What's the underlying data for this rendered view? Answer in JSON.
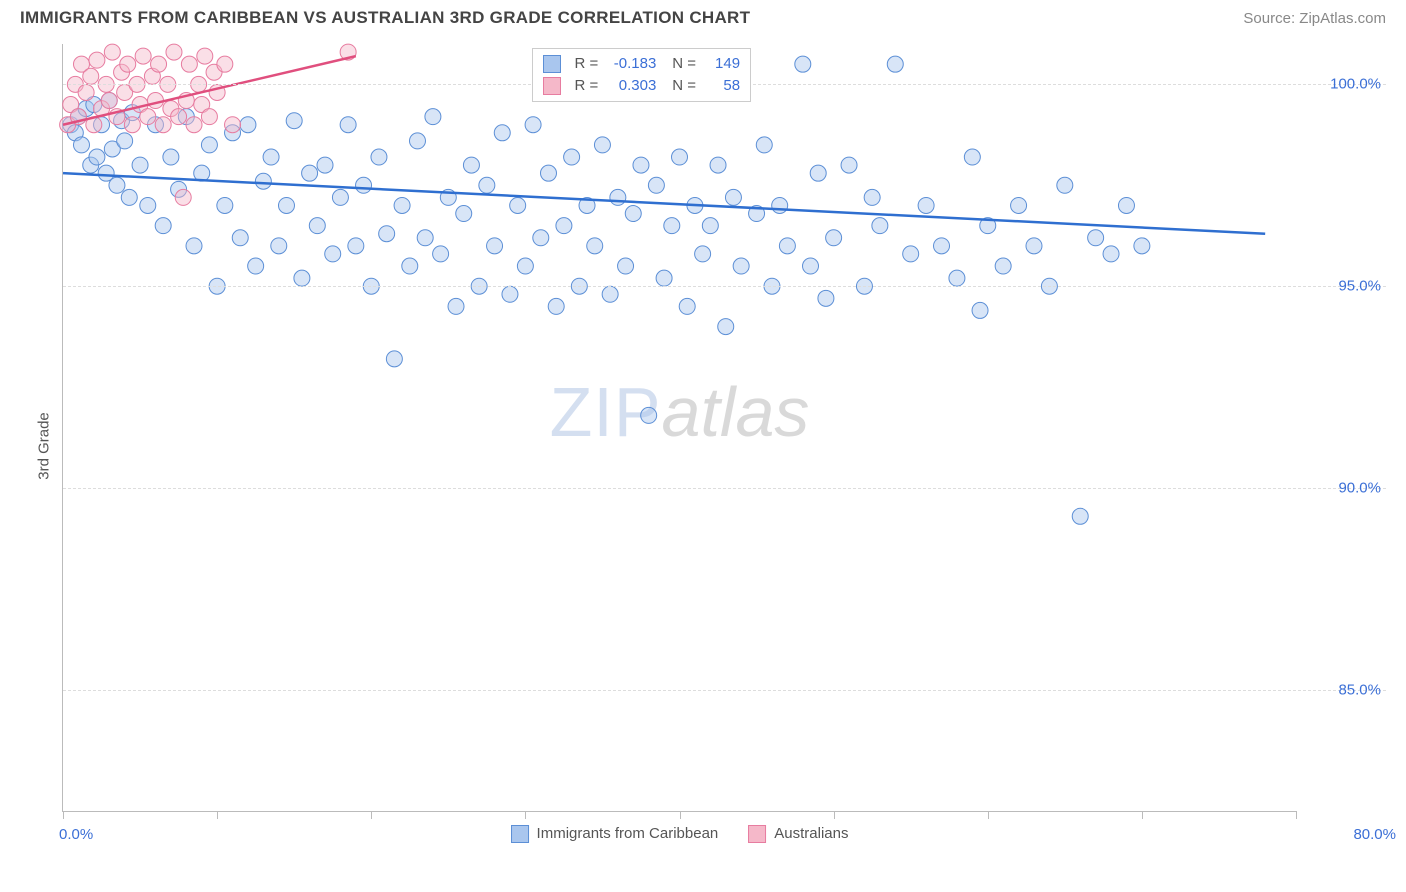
{
  "title": "IMMIGRANTS FROM CARIBBEAN VS AUSTRALIAN 3RD GRADE CORRELATION CHART",
  "source_prefix": "Source: ",
  "source_name": "ZipAtlas.com",
  "ylabel": "3rd Grade",
  "watermark_zip": "ZIP",
  "watermark_atlas": "atlas",
  "chart": {
    "type": "scatter",
    "x_min": 0.0,
    "x_max": 80.0,
    "y_min": 82.0,
    "y_max": 101.0,
    "x_start_label": "0.0%",
    "x_end_label": "80.0%",
    "x_tick_step": 10.0,
    "y_ticks": [
      85.0,
      90.0,
      95.0,
      100.0
    ],
    "y_tick_labels": [
      "85.0%",
      "90.0%",
      "95.0%",
      "100.0%"
    ],
    "background_color": "#ffffff",
    "grid_color": "#dddddd",
    "axis_color": "#bbbbbb",
    "tick_label_color": "#3b6fd6",
    "marker_radius": 8,
    "marker_opacity": 0.45,
    "series": [
      {
        "name": "Immigrants from Caribbean",
        "color_fill": "#a9c6ee",
        "color_stroke": "#5c8fd6",
        "line_color": "#2f6fd0",
        "R": "-0.183",
        "N": "149",
        "trend": {
          "x1": 0.0,
          "y1": 97.8,
          "x2": 78.0,
          "y2": 96.3
        },
        "points": [
          [
            0.5,
            99.0
          ],
          [
            0.8,
            98.8
          ],
          [
            1.0,
            99.2
          ],
          [
            1.2,
            98.5
          ],
          [
            1.5,
            99.4
          ],
          [
            1.8,
            98.0
          ],
          [
            2.0,
            99.5
          ],
          [
            2.2,
            98.2
          ],
          [
            2.5,
            99.0
          ],
          [
            2.8,
            97.8
          ],
          [
            3.0,
            99.6
          ],
          [
            3.2,
            98.4
          ],
          [
            3.5,
            97.5
          ],
          [
            3.8,
            99.1
          ],
          [
            4.0,
            98.6
          ],
          [
            4.3,
            97.2
          ],
          [
            4.5,
            99.3
          ],
          [
            5.0,
            98.0
          ],
          [
            5.5,
            97.0
          ],
          [
            6.0,
            99.0
          ],
          [
            6.5,
            96.5
          ],
          [
            7.0,
            98.2
          ],
          [
            7.5,
            97.4
          ],
          [
            8.0,
            99.2
          ],
          [
            8.5,
            96.0
          ],
          [
            9.0,
            97.8
          ],
          [
            9.5,
            98.5
          ],
          [
            10.0,
            95.0
          ],
          [
            10.5,
            97.0
          ],
          [
            11.0,
            98.8
          ],
          [
            11.5,
            96.2
          ],
          [
            12.0,
            99.0
          ],
          [
            12.5,
            95.5
          ],
          [
            13.0,
            97.6
          ],
          [
            13.5,
            98.2
          ],
          [
            14.0,
            96.0
          ],
          [
            14.5,
            97.0
          ],
          [
            15.0,
            99.1
          ],
          [
            15.5,
            95.2
          ],
          [
            16.0,
            97.8
          ],
          [
            16.5,
            96.5
          ],
          [
            17.0,
            98.0
          ],
          [
            17.5,
            95.8
          ],
          [
            18.0,
            97.2
          ],
          [
            18.5,
            99.0
          ],
          [
            19.0,
            96.0
          ],
          [
            19.5,
            97.5
          ],
          [
            20.0,
            95.0
          ],
          [
            20.5,
            98.2
          ],
          [
            21.0,
            96.3
          ],
          [
            21.5,
            93.2
          ],
          [
            22.0,
            97.0
          ],
          [
            22.5,
            95.5
          ],
          [
            23.0,
            98.6
          ],
          [
            23.5,
            96.2
          ],
          [
            24.0,
            99.2
          ],
          [
            24.5,
            95.8
          ],
          [
            25.0,
            97.2
          ],
          [
            25.5,
            94.5
          ],
          [
            26.0,
            96.8
          ],
          [
            26.5,
            98.0
          ],
          [
            27.0,
            95.0
          ],
          [
            27.5,
            97.5
          ],
          [
            28.0,
            96.0
          ],
          [
            28.5,
            98.8
          ],
          [
            29.0,
            94.8
          ],
          [
            29.5,
            97.0
          ],
          [
            30.0,
            95.5
          ],
          [
            30.5,
            99.0
          ],
          [
            31.0,
            96.2
          ],
          [
            31.5,
            97.8
          ],
          [
            32.0,
            94.5
          ],
          [
            32.5,
            96.5
          ],
          [
            33.0,
            98.2
          ],
          [
            33.5,
            95.0
          ],
          [
            34.0,
            97.0
          ],
          [
            34.5,
            96.0
          ],
          [
            35.0,
            98.5
          ],
          [
            35.5,
            94.8
          ],
          [
            36.0,
            97.2
          ],
          [
            36.5,
            95.5
          ],
          [
            37.0,
            96.8
          ],
          [
            37.5,
            98.0
          ],
          [
            38.0,
            91.8
          ],
          [
            38.5,
            97.5
          ],
          [
            39.0,
            95.2
          ],
          [
            39.5,
            96.5
          ],
          [
            40.0,
            98.2
          ],
          [
            40.5,
            94.5
          ],
          [
            41.0,
            97.0
          ],
          [
            41.5,
            95.8
          ],
          [
            42.0,
            96.5
          ],
          [
            42.5,
            98.0
          ],
          [
            43.0,
            94.0
          ],
          [
            43.5,
            97.2
          ],
          [
            44.0,
            95.5
          ],
          [
            45.0,
            96.8
          ],
          [
            45.5,
            98.5
          ],
          [
            46.0,
            95.0
          ],
          [
            46.5,
            97.0
          ],
          [
            47.0,
            96.0
          ],
          [
            48.0,
            100.5
          ],
          [
            48.5,
            95.5
          ],
          [
            49.0,
            97.8
          ],
          [
            49.5,
            94.7
          ],
          [
            50.0,
            96.2
          ],
          [
            51.0,
            98.0
          ],
          [
            52.0,
            95.0
          ],
          [
            52.5,
            97.2
          ],
          [
            53.0,
            96.5
          ],
          [
            54.0,
            100.5
          ],
          [
            55.0,
            95.8
          ],
          [
            56.0,
            97.0
          ],
          [
            57.0,
            96.0
          ],
          [
            58.0,
            95.2
          ],
          [
            59.0,
            98.2
          ],
          [
            59.5,
            94.4
          ],
          [
            60.0,
            96.5
          ],
          [
            61.0,
            95.5
          ],
          [
            62.0,
            97.0
          ],
          [
            63.0,
            96.0
          ],
          [
            64.0,
            95.0
          ],
          [
            65.0,
            97.5
          ],
          [
            66.0,
            89.3
          ],
          [
            67.0,
            96.2
          ],
          [
            68.0,
            95.8
          ],
          [
            69.0,
            97.0
          ],
          [
            70.0,
            96.0
          ]
        ]
      },
      {
        "name": "Australians",
        "color_fill": "#f5b8c9",
        "color_stroke": "#e77ca0",
        "line_color": "#e04f7e",
        "R": "0.303",
        "N": "58",
        "trend": {
          "x1": 0.0,
          "y1": 99.0,
          "x2": 19.0,
          "y2": 100.7
        },
        "points": [
          [
            0.3,
            99.0
          ],
          [
            0.5,
            99.5
          ],
          [
            0.8,
            100.0
          ],
          [
            1.0,
            99.2
          ],
          [
            1.2,
            100.5
          ],
          [
            1.5,
            99.8
          ],
          [
            1.8,
            100.2
          ],
          [
            2.0,
            99.0
          ],
          [
            2.2,
            100.6
          ],
          [
            2.5,
            99.4
          ],
          [
            2.8,
            100.0
          ],
          [
            3.0,
            99.6
          ],
          [
            3.2,
            100.8
          ],
          [
            3.5,
            99.2
          ],
          [
            3.8,
            100.3
          ],
          [
            4.0,
            99.8
          ],
          [
            4.2,
            100.5
          ],
          [
            4.5,
            99.0
          ],
          [
            4.8,
            100.0
          ],
          [
            5.0,
            99.5
          ],
          [
            5.2,
            100.7
          ],
          [
            5.5,
            99.2
          ],
          [
            5.8,
            100.2
          ],
          [
            6.0,
            99.6
          ],
          [
            6.2,
            100.5
          ],
          [
            6.5,
            99.0
          ],
          [
            6.8,
            100.0
          ],
          [
            7.0,
            99.4
          ],
          [
            7.2,
            100.8
          ],
          [
            7.5,
            99.2
          ],
          [
            7.8,
            97.2
          ],
          [
            8.0,
            99.6
          ],
          [
            8.2,
            100.5
          ],
          [
            8.5,
            99.0
          ],
          [
            8.8,
            100.0
          ],
          [
            9.0,
            99.5
          ],
          [
            9.2,
            100.7
          ],
          [
            9.5,
            99.2
          ],
          [
            9.8,
            100.3
          ],
          [
            10.0,
            99.8
          ],
          [
            10.5,
            100.5
          ],
          [
            11.0,
            99.0
          ],
          [
            18.5,
            100.8
          ]
        ]
      }
    ],
    "legend_box": {
      "left_pct": 38,
      "top_pct": 0.5
    },
    "legend_labels": {
      "R": "R =",
      "N": "N ="
    },
    "bottom_legend": [
      "Immigrants from Caribbean",
      "Australians"
    ]
  }
}
